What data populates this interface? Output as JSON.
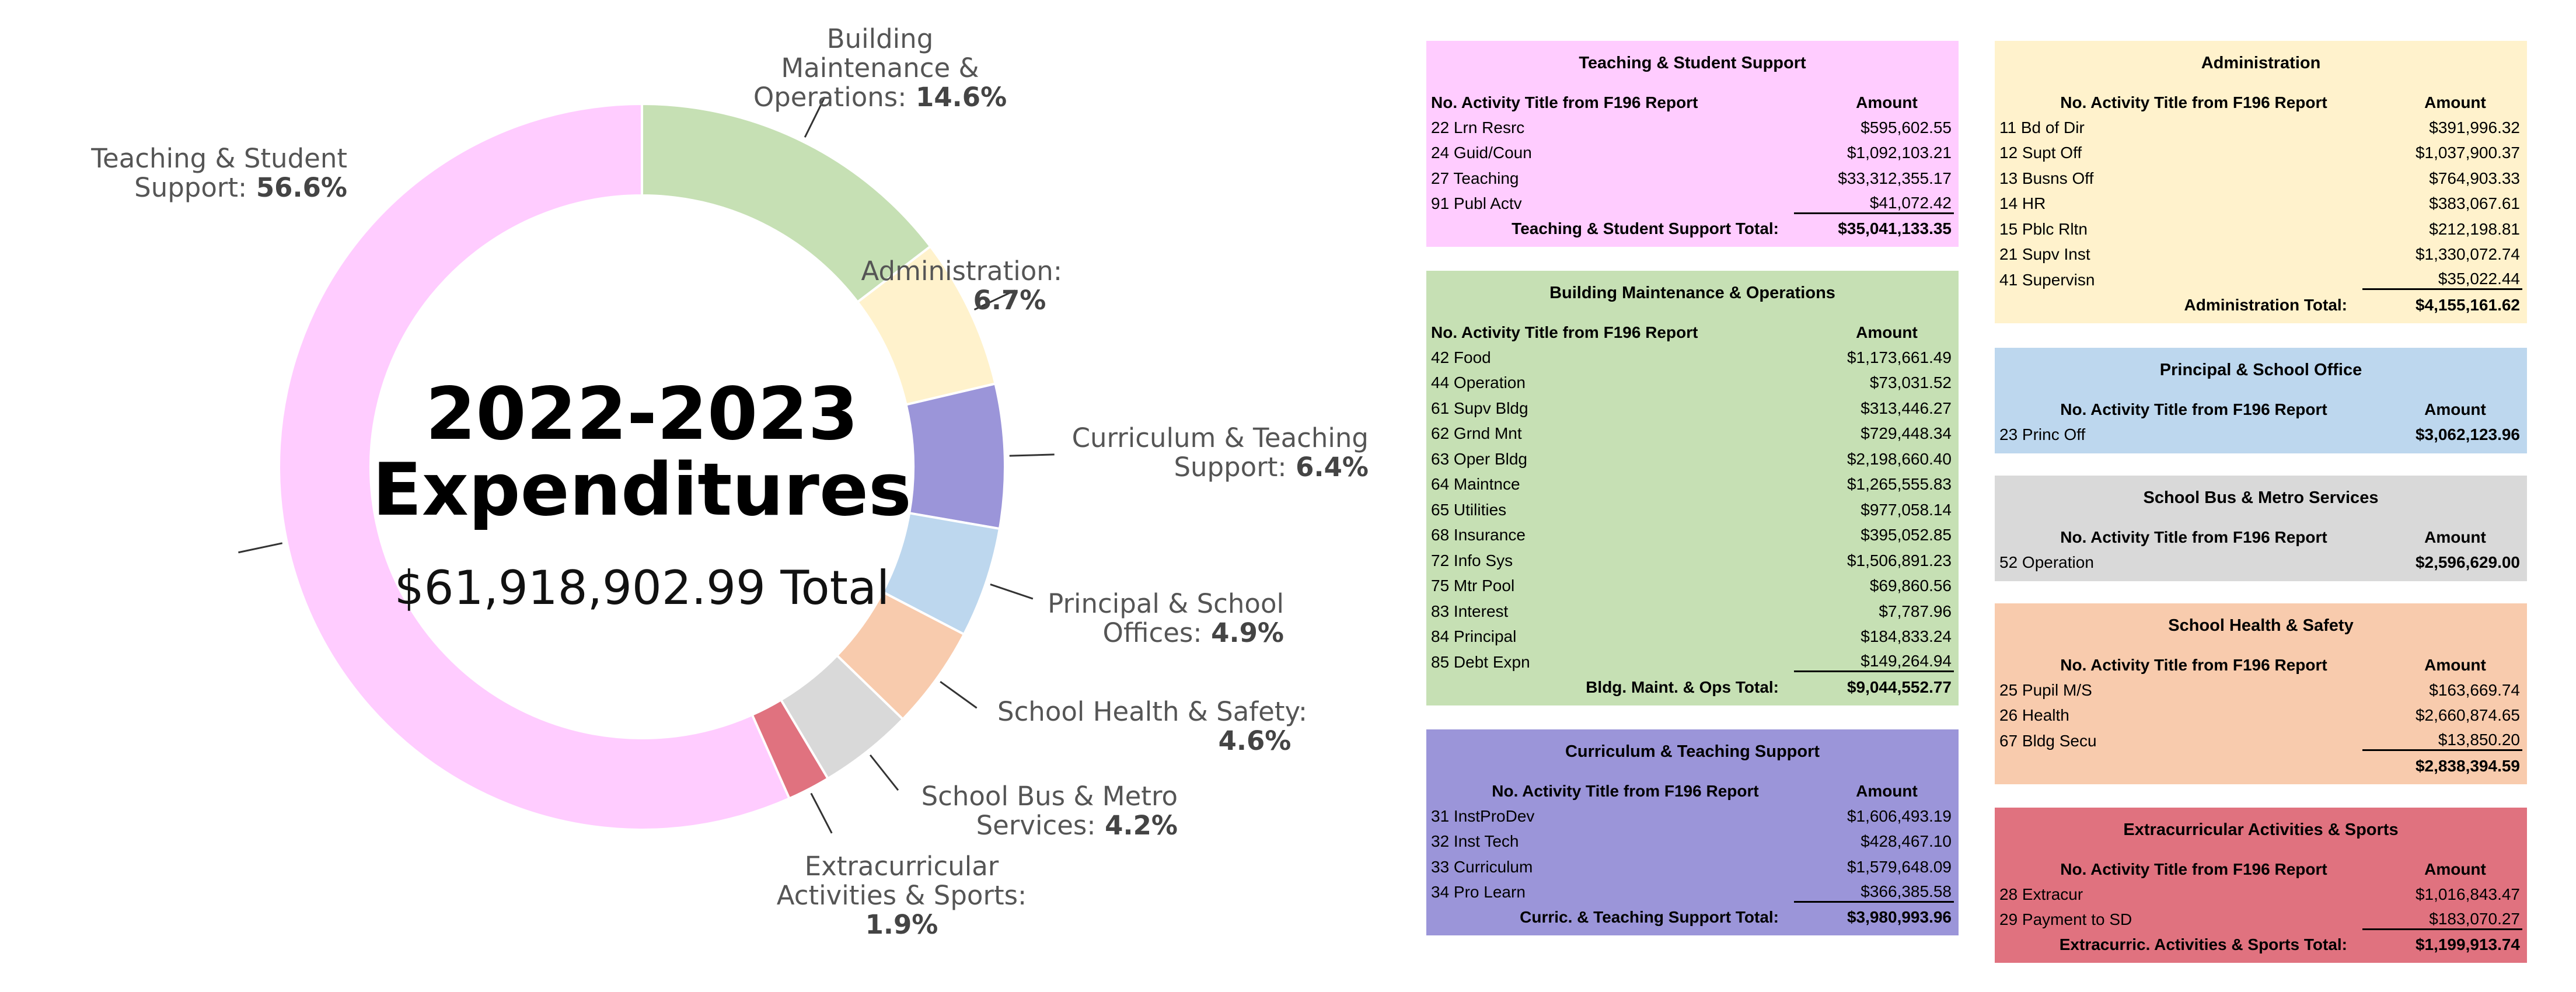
{
  "chart_data": {
    "type": "pie",
    "style": "donut",
    "title": "2022-2023 Expenditures",
    "subtitle": "$61,918,902.99 Total",
    "slices": [
      {
        "label": "Teaching & Student Support",
        "label_lines": [
          "Teaching & Student",
          "Support:"
        ],
        "pct_text": "56.6%",
        "value": 56.6,
        "color": "#FFCCFF"
      },
      {
        "label": "Building Maintenance & Operations",
        "label_lines": [
          "Building",
          "Maintenance &",
          "Operations:"
        ],
        "pct_text": "14.6%",
        "value": 14.6,
        "color": "#C6E0B4"
      },
      {
        "label": "Administration",
        "label_lines": [
          "Administration:"
        ],
        "pct_text": "6.7%",
        "value": 6.7,
        "color": "#FFF2CC"
      },
      {
        "label": "Curriculum & Teaching Support",
        "label_lines": [
          "Curriculum & Teaching",
          "Support:"
        ],
        "pct_text": "6.4%",
        "value": 6.4,
        "color": "#9B95D9"
      },
      {
        "label": "Principal & School Offices",
        "label_lines": [
          "Principal & School",
          "Offices:"
        ],
        "pct_text": "4.9%",
        "value": 4.9,
        "color": "#BDD7EE"
      },
      {
        "label": "School Health & Safety",
        "label_lines": [
          "School Health & Safety:"
        ],
        "pct_text": "4.6%",
        "value": 4.6,
        "color": "#F8CBAD"
      },
      {
        "label": "School Bus & Metro Services",
        "label_lines": [
          "School Bus & Metro",
          "Services:"
        ],
        "pct_text": "4.2%",
        "value": 4.2,
        "color": "#D9D9D9"
      },
      {
        "label": "Extracurricular Activities & Sports",
        "label_lines": [
          "Extracurricular",
          "Activities & Sports:"
        ],
        "pct_text": "1.9%",
        "value": 1.9,
        "color": "#E0727F"
      }
    ]
  },
  "tables": {
    "header_activity": "No. Activity Title from F196 Report",
    "header_amount": "Amount",
    "teaching": {
      "title": "Teaching & Student Support",
      "color": "#FFCCFF",
      "rows": [
        {
          "activity": "22 Lrn Resrc",
          "amount": "$595,602.55"
        },
        {
          "activity": "24 Guid/Coun",
          "amount": "$1,092,103.21"
        },
        {
          "activity": "27 Teaching",
          "amount": "$33,312,355.17"
        },
        {
          "activity": "91 Publ Actv",
          "amount": "$41,072.42"
        }
      ],
      "total_label": "Teaching & Student Support Total:",
      "total_amount": "$35,041,133.35"
    },
    "building": {
      "title": "Building Maintenance & Operations",
      "color": "#C6E0B4",
      "rows": [
        {
          "activity": "42 Food",
          "amount": "$1,173,661.49"
        },
        {
          "activity": "44 Operation",
          "amount": "$73,031.52"
        },
        {
          "activity": "61 Supv Bldg",
          "amount": "$313,446.27"
        },
        {
          "activity": "62 Grnd Mnt",
          "amount": "$729,448.34"
        },
        {
          "activity": "63 Oper Bldg",
          "amount": "$2,198,660.40"
        },
        {
          "activity": "64 Maintnce",
          "amount": "$1,265,555.83"
        },
        {
          "activity": "65 Utilities",
          "amount": "$977,058.14"
        },
        {
          "activity": "68 Insurance",
          "amount": "$395,052.85"
        },
        {
          "activity": "72 Info Sys",
          "amount": "$1,506,891.23"
        },
        {
          "activity": "75 Mtr Pool",
          "amount": "$69,860.56"
        },
        {
          "activity": "83 Interest",
          "amount": "$7,787.96"
        },
        {
          "activity": "84 Principal",
          "amount": "$184,833.24"
        },
        {
          "activity": "85 Debt Expn",
          "amount": "$149,264.94"
        }
      ],
      "total_label": "Bldg. Maint. & Ops Total:",
      "total_amount": "$9,044,552.77"
    },
    "curriculum": {
      "title": "Curriculum & Teaching Support",
      "color": "#9B95D9",
      "rows": [
        {
          "activity": "31 InstProDev",
          "amount": "$1,606,493.19"
        },
        {
          "activity": "32 Inst Tech",
          "amount": "$428,467.10"
        },
        {
          "activity": "33 Curriculum",
          "amount": "$1,579,648.09"
        },
        {
          "activity": "34 Pro Learn",
          "amount": "$366,385.58"
        }
      ],
      "total_label": "Curric. & Teaching Support Total:",
      "total_amount": "$3,980,993.96"
    },
    "administration": {
      "title": "Administration",
      "color": "#FFF2CC",
      "rows": [
        {
          "activity": "11 Bd of Dir",
          "amount": "$391,996.32"
        },
        {
          "activity": "12 Supt Off",
          "amount": "$1,037,900.37"
        },
        {
          "activity": "13 Busns Off",
          "amount": "$764,903.33"
        },
        {
          "activity": "14 HR",
          "amount": "$383,067.61"
        },
        {
          "activity": "15 Pblc Rltn",
          "amount": "$212,198.81"
        },
        {
          "activity": "21 Supv Inst",
          "amount": "$1,330,072.74"
        },
        {
          "activity": "41 Supervisn",
          "amount": "$35,022.44"
        }
      ],
      "total_label": "Administration Total:",
      "total_amount": "$4,155,161.62"
    },
    "principal": {
      "title": "Principal & School Office",
      "color": "#BDD7EE",
      "rows": [
        {
          "activity": "23 Princ Off",
          "amount": "$3,062,123.96"
        }
      ]
    },
    "bus": {
      "title": "School Bus & Metro Services",
      "color": "#D9D9D9",
      "rows": [
        {
          "activity": "52 Operation",
          "amount": "$2,596,629.00"
        }
      ]
    },
    "health": {
      "title": "School Health & Safety",
      "color": "#F8CBAD",
      "rows": [
        {
          "activity": "25 Pupil M/S",
          "amount": "$163,669.74"
        },
        {
          "activity": "26 Health",
          "amount": "$2,660,874.65"
        },
        {
          "activity": "67 Bldg Secu",
          "amount": "$13,850.20"
        }
      ],
      "total_label": "",
      "total_amount": "$2,838,394.59"
    },
    "extracurricular": {
      "title": "Extracurricular Activities & Sports",
      "color": "#E0727F",
      "rows": [
        {
          "activity": "28 Extracur",
          "amount": "$1,016,843.47"
        },
        {
          "activity": "29 Payment to SD",
          "amount": "$183,070.27"
        }
      ],
      "total_label": "Extracurric. Activities & Sports Total:",
      "total_amount": "$1,199,913.74"
    }
  }
}
